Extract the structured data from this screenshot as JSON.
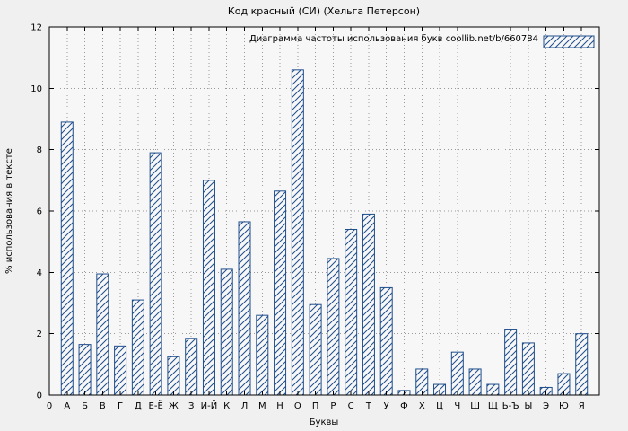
{
  "chart_data": {
    "type": "bar",
    "title": "Код красный (СИ) (Хельга Петерсон)",
    "legend_label": "Диаграмма частоты использования букв coollib.net/b/660784",
    "legend_position": "top-right",
    "xlabel": "Буквы",
    "ylabel": "% использования в тексте",
    "ylim": [
      0,
      12
    ],
    "yticks": [
      0,
      2,
      4,
      6,
      8,
      10,
      12
    ],
    "origin_label": "0",
    "grid": true,
    "bar_color": "#1f4e8c",
    "background": "#f0f0f0",
    "plot_background": "#f7f7f7",
    "categories": [
      "А",
      "Б",
      "В",
      "Г",
      "Д",
      "Е-Ё",
      "Ж",
      "З",
      "И-Й",
      "К",
      "Л",
      "М",
      "Н",
      "О",
      "П",
      "Р",
      "С",
      "Т",
      "У",
      "Ф",
      "Х",
      "Ц",
      "Ч",
      "Ш",
      "Щ",
      "Ь-Ъ",
      "Ы",
      "Э",
      "Ю",
      "Я"
    ],
    "values": [
      8.9,
      1.65,
      3.95,
      1.6,
      3.1,
      7.9,
      1.25,
      1.85,
      7.0,
      4.1,
      5.65,
      2.6,
      6.65,
      10.6,
      2.95,
      4.45,
      5.4,
      5.9,
      3.5,
      0.15,
      0.85,
      0.35,
      1.4,
      0.85,
      0.35,
      2.15,
      1.7,
      0.25,
      0.7,
      2.0
    ]
  }
}
